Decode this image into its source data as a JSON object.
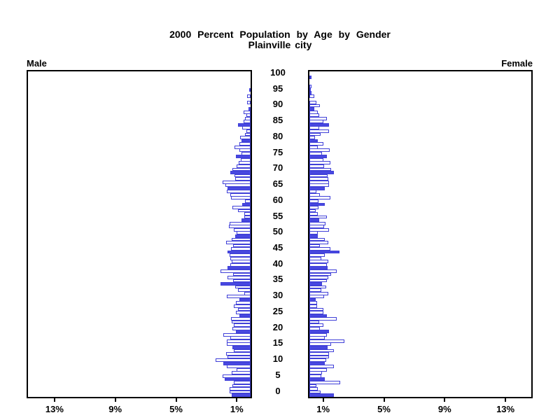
{
  "title": {
    "line1": "2000 Percent Population by Age by Gender",
    "line2": "Plainville city"
  },
  "axis": {
    "male_label": "Male",
    "female_label": "Female"
  },
  "chart_data": {
    "type": "bar",
    "subtype": "population-pyramid",
    "title": "2000 Percent Population by Age by Gender",
    "subtitle": "Plainville city",
    "unit": "percent of population",
    "age_min": 0,
    "age_max": 100,
    "age_tick_labels": [
      0,
      5,
      10,
      15,
      20,
      25,
      30,
      35,
      40,
      45,
      50,
      55,
      60,
      65,
      70,
      75,
      80,
      85,
      90,
      95,
      100
    ],
    "x_tick_percents": [
      1,
      5,
      9,
      13
    ],
    "x_tick_labels": [
      "1%",
      "5%",
      "9%",
      "13%"
    ],
    "xlim": [
      0,
      14.8
    ],
    "filled_age_interval": 5,
    "legend": "bars at ages divisible by 5 are solid filled, others outlined",
    "colors": {
      "bar_fill": "#4848e0",
      "bar_outline": "#4040d8",
      "frame": "#000000"
    },
    "series": [
      {
        "name": "Male",
        "side": "left",
        "values": [
          1.25,
          1.4,
          1.4,
          1.2,
          1.1,
          1.7,
          1.85,
          1.25,
          0.9,
          1.55,
          1.8,
          2.3,
          1.5,
          1.6,
          1.1,
          1.2,
          1.55,
          1.55,
          1.35,
          1.8,
          0.95,
          1.2,
          1.1,
          1.25,
          1.3,
          0.75,
          0.95,
          0.85,
          1.1,
          0.95,
          0.75,
          1.55,
          0.4,
          0.85,
          1.0,
          2.0,
          1.15,
          1.5,
          1.15,
          2.0,
          1.5,
          1.35,
          1.25,
          1.35,
          1.4,
          1.5,
          1.3,
          1.15,
          1.6,
          1.25,
          1.0,
          0.9,
          1.1,
          1.45,
          1.4,
          0.6,
          0.4,
          0.4,
          0.85,
          1.2,
          0.55,
          0.35,
          1.3,
          1.35,
          1.55,
          1.5,
          1.65,
          1.85,
          1.0,
          1.05,
          1.35,
          1.2,
          0.9,
          0.8,
          0.65,
          0.95,
          0.6,
          0.75,
          1.05,
          0.75,
          0.6,
          0.7,
          0.35,
          0.3,
          0.55,
          0.85,
          0.45,
          0.35,
          0.3,
          0.45,
          0.15,
          0,
          0.25,
          0,
          0.25,
          0,
          0.1,
          0,
          0,
          0,
          0
        ]
      },
      {
        "name": "Female",
        "side": "right",
        "values": [
          1.6,
          0.75,
          0.55,
          0.45,
          2.05,
          1.0,
          0.8,
          0.85,
          1.15,
          1.6,
          1.0,
          1.1,
          1.3,
          1.3,
          1.6,
          1.2,
          1.45,
          2.3,
          1.0,
          1.15,
          1.3,
          0.7,
          0.9,
          0.65,
          1.8,
          1.15,
          0.9,
          0.9,
          0.5,
          0.5,
          0.4,
          0.95,
          1.25,
          0.8,
          1.1,
          0.85,
          1.15,
          1.25,
          1.45,
          1.8,
          1.2,
          1.15,
          1.25,
          0.8,
          1.0,
          2.0,
          1.4,
          0.7,
          1.25,
          1.0,
          0.55,
          0.55,
          1.3,
          0.95,
          1.05,
          0.65,
          1.15,
          0.55,
          0.4,
          0.6,
          1.0,
          0.6,
          1.4,
          0.7,
          0.45,
          1.0,
          1.3,
          1.3,
          1.25,
          1.2,
          1.6,
          1.45,
          0.95,
          1.4,
          0.9,
          1.15,
          0.85,
          1.35,
          0.55,
          0.9,
          0.55,
          0.35,
          0.75,
          1.3,
          0.65,
          1.3,
          0.9,
          1.15,
          0.65,
          0.55,
          0.3,
          0.7,
          0.45,
          0,
          0.3,
          0.15,
          0.1,
          0.15,
          0,
          0,
          0.15
        ]
      }
    ]
  }
}
